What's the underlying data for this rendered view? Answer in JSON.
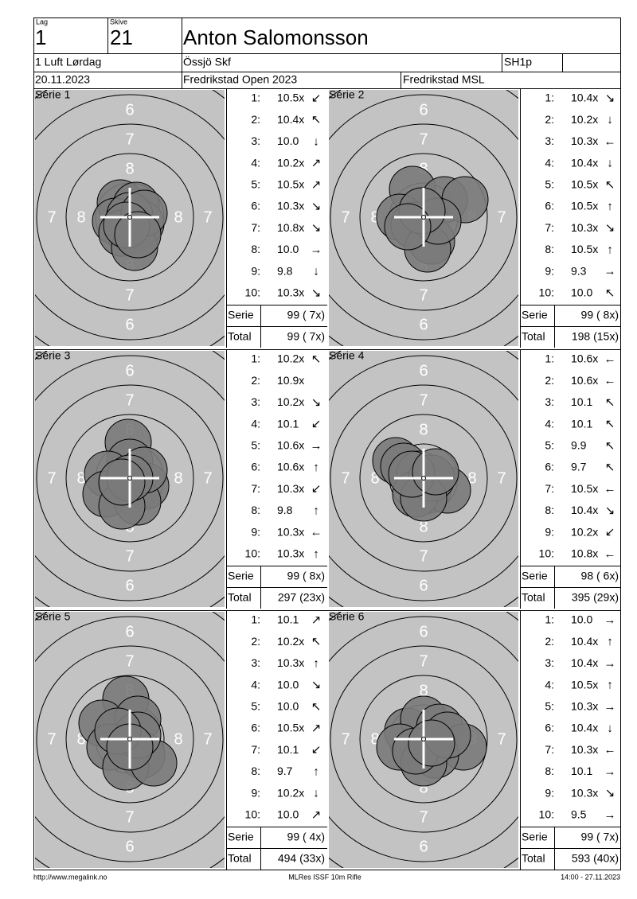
{
  "header": {
    "lag_label": "Lag",
    "lag": "1",
    "skive_label": "Skive",
    "skive": "21",
    "name": "Anton Salomonsson",
    "class": "1 Luft Lørdag",
    "club": "Össjö Skf",
    "category": "SH1p",
    "date": "20.11.2023",
    "event": "Fredrikstad Open 2023",
    "venue": "Fredrikstad MSL"
  },
  "ring_labels": [
    "6",
    "7",
    "8"
  ],
  "series": [
    {
      "title": "Série 1",
      "shots": [
        {
          "no": "1:",
          "score": "10.5x",
          "dir": "↙"
        },
        {
          "no": "2:",
          "score": "10.4x",
          "dir": "↖"
        },
        {
          "no": "3:",
          "score": "10.0",
          "dir": "↓"
        },
        {
          "no": "4:",
          "score": "10.2x",
          "dir": "↗"
        },
        {
          "no": "5:",
          "score": "10.5x",
          "dir": "↗"
        },
        {
          "no": "6:",
          "score": "10.3x",
          "dir": "↘"
        },
        {
          "no": "7:",
          "score": "10.8x",
          "dir": "↘"
        },
        {
          "no": "8:",
          "score": "10.0",
          "dir": "→"
        },
        {
          "no": "9:",
          "score": "9.8",
          "dir": "↓"
        },
        {
          "no": "10:",
          "score": "10.3x",
          "dir": "↘"
        }
      ],
      "serie_label": "Serie",
      "serie": "99 ( 7x)",
      "total_label": "Total",
      "total": "99 ( 7x)"
    },
    {
      "title": "Série 2",
      "shots": [
        {
          "no": "1:",
          "score": "10.4x",
          "dir": "↘"
        },
        {
          "no": "2:",
          "score": "10.2x",
          "dir": "↓"
        },
        {
          "no": "3:",
          "score": "10.3x",
          "dir": "←"
        },
        {
          "no": "4:",
          "score": "10.4x",
          "dir": "↓"
        },
        {
          "no": "5:",
          "score": "10.5x",
          "dir": "↖"
        },
        {
          "no": "6:",
          "score": "10.5x",
          "dir": "↑"
        },
        {
          "no": "7:",
          "score": "10.3x",
          "dir": "↘"
        },
        {
          "no": "8:",
          "score": "10.5x",
          "dir": "↑"
        },
        {
          "no": "9:",
          "score": "9.3",
          "dir": "→"
        },
        {
          "no": "10:",
          "score": "10.0",
          "dir": "↖"
        }
      ],
      "serie_label": "Serie",
      "serie": "99 ( 8x)",
      "total_label": "Total",
      "total": "198 (15x)"
    },
    {
      "title": "Série 3",
      "shots": [
        {
          "no": "1:",
          "score": "10.2x",
          "dir": "↖"
        },
        {
          "no": "2:",
          "score": "10.9x"
        },
        {
          "no": "3:",
          "score": "10.2x",
          "dir": "↘"
        },
        {
          "no": "4:",
          "score": "10.1",
          "dir": "↙"
        },
        {
          "no": "5:",
          "score": "10.6x",
          "dir": "→"
        },
        {
          "no": "6:",
          "score": "10.6x",
          "dir": "↑"
        },
        {
          "no": "7:",
          "score": "10.3x",
          "dir": "↙"
        },
        {
          "no": "8:",
          "score": "9.8",
          "dir": "↑"
        },
        {
          "no": "9:",
          "score": "10.3x",
          "dir": "←"
        },
        {
          "no": "10:",
          "score": "10.3x",
          "dir": "↑"
        }
      ],
      "serie_label": "Serie",
      "serie": "99 ( 8x)",
      "total_label": "Total",
      "total": "297 (23x)"
    },
    {
      "title": "Série 4",
      "shots": [
        {
          "no": "1:",
          "score": "10.6x",
          "dir": "←"
        },
        {
          "no": "2:",
          "score": "10.6x",
          "dir": "←"
        },
        {
          "no": "3:",
          "score": "10.1",
          "dir": "↖"
        },
        {
          "no": "4:",
          "score": "10.1",
          "dir": "↖"
        },
        {
          "no": "5:",
          "score": "9.9",
          "dir": "↖"
        },
        {
          "no": "6:",
          "score": "9.7",
          "dir": "↖"
        },
        {
          "no": "7:",
          "score": "10.5x",
          "dir": "←"
        },
        {
          "no": "8:",
          "score": "10.4x",
          "dir": "↘"
        },
        {
          "no": "9:",
          "score": "10.2x",
          "dir": "↙"
        },
        {
          "no": "10:",
          "score": "10.8x",
          "dir": "←"
        }
      ],
      "serie_label": "Serie",
      "serie": "98 ( 6x)",
      "total_label": "Total",
      "total": "395 (29x)"
    },
    {
      "title": "Série 5",
      "shots": [
        {
          "no": "1:",
          "score": "10.1",
          "dir": "↗"
        },
        {
          "no": "2:",
          "score": "10.2x",
          "dir": "↖"
        },
        {
          "no": "3:",
          "score": "10.3x",
          "dir": "↑"
        },
        {
          "no": "4:",
          "score": "10.0",
          "dir": "↘"
        },
        {
          "no": "5:",
          "score": "10.0",
          "dir": "↖"
        },
        {
          "no": "6:",
          "score": "10.5x",
          "dir": "↗"
        },
        {
          "no": "7:",
          "score": "10.1",
          "dir": "↙"
        },
        {
          "no": "8:",
          "score": "9.7",
          "dir": "↑"
        },
        {
          "no": "9:",
          "score": "10.2x",
          "dir": "↓"
        },
        {
          "no": "10:",
          "score": "10.0",
          "dir": "↗"
        }
      ],
      "serie_label": "Serie",
      "serie": "99 ( 4x)",
      "total_label": "Total",
      "total": "494 (33x)"
    },
    {
      "title": "Série 6",
      "shots": [
        {
          "no": "1:",
          "score": "10.0",
          "dir": "→"
        },
        {
          "no": "2:",
          "score": "10.4x",
          "dir": "↑"
        },
        {
          "no": "3:",
          "score": "10.4x",
          "dir": "→"
        },
        {
          "no": "4:",
          "score": "10.5x",
          "dir": "↑"
        },
        {
          "no": "5:",
          "score": "10.3x",
          "dir": "→"
        },
        {
          "no": "6:",
          "score": "10.4x",
          "dir": "↓"
        },
        {
          "no": "7:",
          "score": "10.3x",
          "dir": "←"
        },
        {
          "no": "8:",
          "score": "10.1",
          "dir": "→"
        },
        {
          "no": "9:",
          "score": "10.3x",
          "dir": "↘"
        },
        {
          "no": "10:",
          "score": "9.5",
          "dir": "→"
        }
      ],
      "serie_label": "Serie",
      "serie": "99 ( 7x)",
      "total_label": "Total",
      "total": "593 (40x)"
    }
  ],
  "footer": {
    "url": "http://www.megalink.no",
    "program": "MLRes ISSF 10m Rifle",
    "timestamp": "14:00 - 27.11.2023"
  }
}
